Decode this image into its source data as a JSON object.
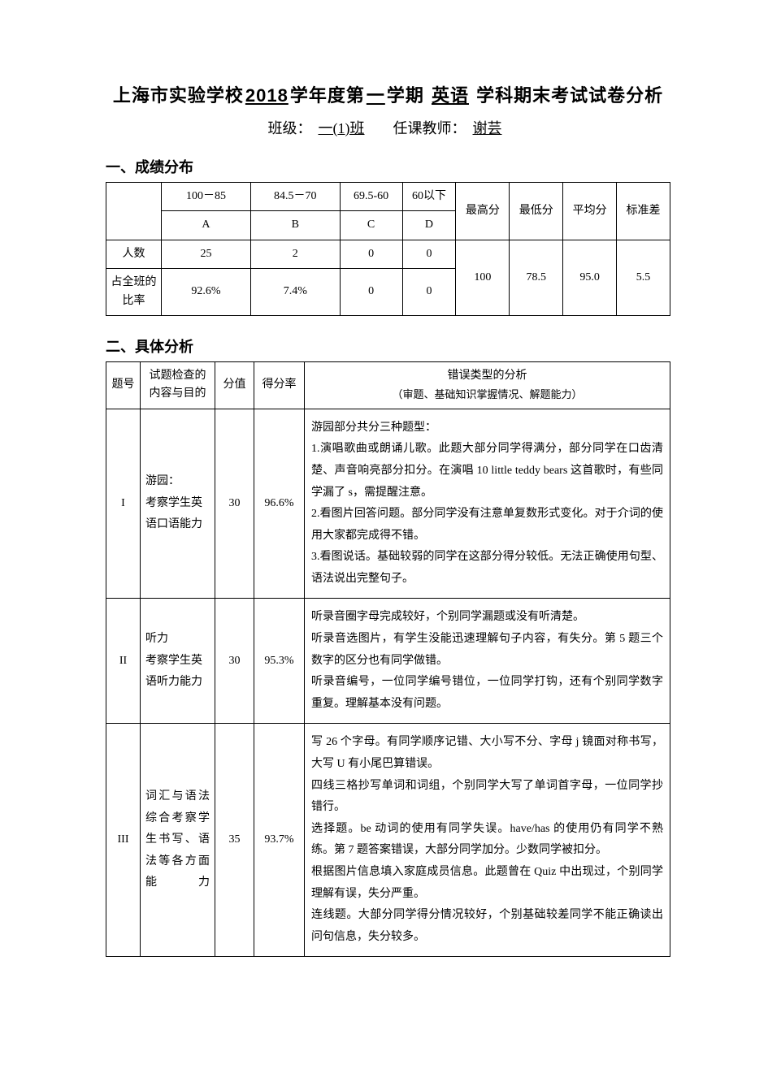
{
  "header": {
    "title_prefix": "上海市实验学校",
    "year": "2018",
    "title_mid1": "学年度第",
    "semester": "一",
    "title_mid2": "学期",
    "subject": "英语",
    "title_suffix": "学科期末考试试卷分析",
    "class_label": "班级：",
    "class_value": "一(1)班",
    "teacher_label": "任课教师：",
    "teacher_value": "谢芸"
  },
  "section1": {
    "heading": "一、成绩分布",
    "cols": {
      "range_a": "100－85",
      "grade_a": "A",
      "range_b": "84.5－70",
      "grade_b": "B",
      "range_c": "69.5-60",
      "grade_c": "C",
      "range_d": "60以下",
      "grade_d": "D",
      "max": "最高分",
      "min": "最低分",
      "avg": "平均分",
      "std": "标准差"
    },
    "row_count_label": "人数",
    "row_ratio_label": "占全班的比率",
    "count": {
      "a": "25",
      "b": "2",
      "c": "0",
      "d": "0"
    },
    "ratio": {
      "a": "92.6%",
      "b": "7.4%",
      "c": "0",
      "d": "0"
    },
    "stats": {
      "max": "100",
      "min": "78.5",
      "avg": "95.0",
      "std": "5.5"
    }
  },
  "section2": {
    "heading": "二、具体分析",
    "head": {
      "num": "题号",
      "purpose": "试题检查的内容与目的",
      "score": "分值",
      "rate": "得分率",
      "err_title": "错误类型的分析",
      "err_sub": "（审题、基础知识掌握情况、解题能力）"
    },
    "rows": [
      {
        "num": "I",
        "purpose": "游园：\n考察学生英语口语能力",
        "score": "30",
        "rate": "96.6%",
        "analysis": "游园部分共分三种题型：\n1.演唱歌曲或朗诵儿歌。此题大部分同学得满分，部分同学在口齿清楚、声音响亮部分扣分。在演唱 10 little teddy bears 这首歌时，有些同学漏了 s，需提醒注意。\n2.看图片回答问题。部分同学没有注意单复数形式变化。对于介词的使用大家都完成得不错。\n3.看图说话。基础较弱的同学在这部分得分较低。无法正确使用句型、语法说出完整句子。"
      },
      {
        "num": "II",
        "purpose": "听力\n考察学生英语听力能力",
        "score": "30",
        "rate": "95.3%",
        "analysis": "听录音圈字母完成较好，个别同学漏题或没有听清楚。\n听录音选图片，有学生没能迅速理解句子内容，有失分。第 5 题三个数字的区分也有同学做错。\n听录音编号，一位同学编号错位，一位同学打钩，还有个别同学数字重复。理解基本没有问题。"
      },
      {
        "num": "III",
        "purpose": "词汇与语法\n综合考察学生书写、语法等各方面能力",
        "purpose_spread": "true",
        "score": "35",
        "rate": "93.7%",
        "analysis": "写 26 个字母。有同学顺序记错、大小写不分、字母 j 镜面对称书写，大写 U 有小尾巴算错误。\n四线三格抄写单词和词组，个别同学大写了单词首字母，一位同学抄错行。\n选择题。be 动词的使用有同学失误。have/has 的使用仍有同学不熟练。第 7 题答案错误，大部分同学加分。少数同学被扣分。\n根据图片信息填入家庭成员信息。此题曾在 Quiz 中出现过，个别同学理解有误，失分严重。\n连线题。大部分同学得分情况较好，个别基础较差同学不能正确读出问句信息，失分较多。"
      }
    ]
  }
}
